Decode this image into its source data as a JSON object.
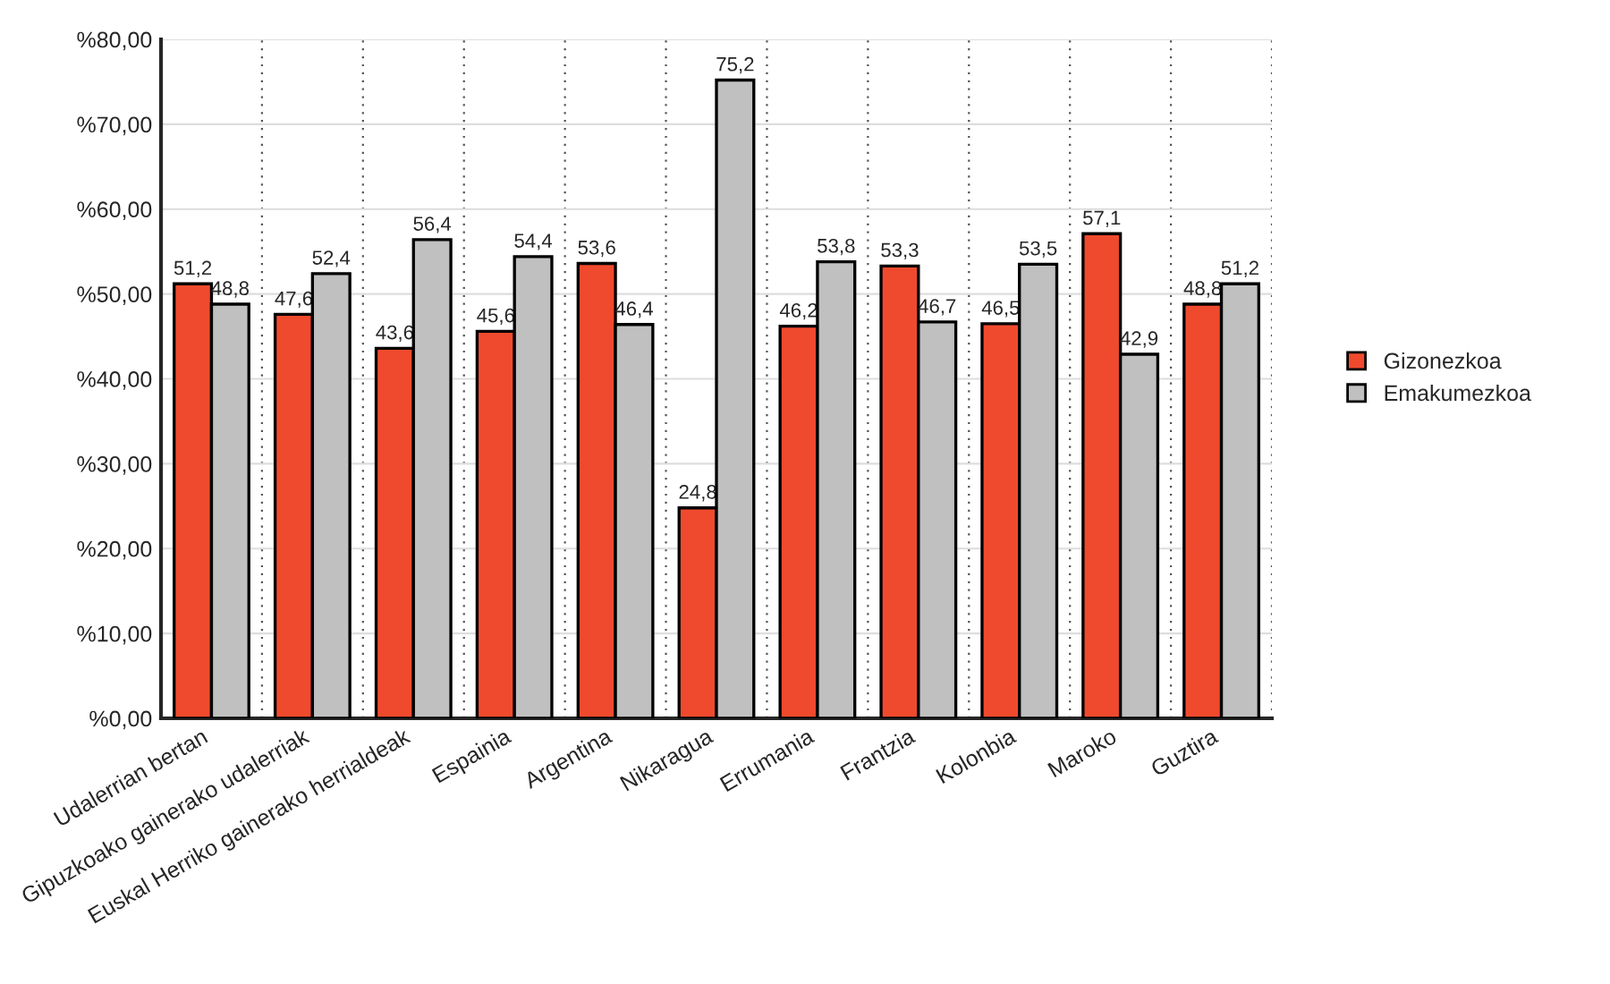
{
  "chart_data": {
    "type": "bar",
    "categories": [
      "Udalerrian bertan",
      "Gipuzkoako gainerako udalerriak",
      "Euskal Herriko gainerako herrialdeak",
      "Espainia",
      "Argentina",
      "Nikaragua",
      "Errumania",
      "Frantzia",
      "Kolonbia",
      "Maroko",
      "Guztira"
    ],
    "series": [
      {
        "name": "Gizonezkoa",
        "color": "#f04a2e",
        "values": [
          51.2,
          47.6,
          43.6,
          45.6,
          53.6,
          24.8,
          46.2,
          53.3,
          46.5,
          57.1,
          48.8
        ],
        "value_labels": [
          "51,2",
          "47,6",
          "43,6",
          "45,6",
          "53,6",
          "24,8",
          "46,2",
          "53,3",
          "46,5",
          "57,1",
          "48,8"
        ]
      },
      {
        "name": "Emakumezkoa",
        "color": "#c0c0c0",
        "values": [
          48.8,
          52.4,
          56.4,
          54.4,
          46.4,
          75.2,
          53.8,
          46.7,
          53.5,
          42.9,
          51.2
        ],
        "value_labels": [
          "48,8",
          "52,4",
          "56,4",
          "54,4",
          "46,4",
          "75,2",
          "53,8",
          "46,7",
          "53,5",
          "42,9",
          "51,2"
        ]
      }
    ],
    "ylim": [
      0,
      80
    ],
    "yticks": [
      {
        "value": 0,
        "label": "%0,00"
      },
      {
        "value": 10,
        "label": "%10,00"
      },
      {
        "value": 20,
        "label": "%20,00"
      },
      {
        "value": 30,
        "label": "%30,00"
      },
      {
        "value": 40,
        "label": "%40,00"
      },
      {
        "value": 50,
        "label": "%50,00"
      },
      {
        "value": 60,
        "label": "%60,00"
      },
      {
        "value": 70,
        "label": "%70,00"
      },
      {
        "value": 80,
        "label": "%80,00"
      }
    ],
    "grid": true,
    "legend": "right"
  }
}
